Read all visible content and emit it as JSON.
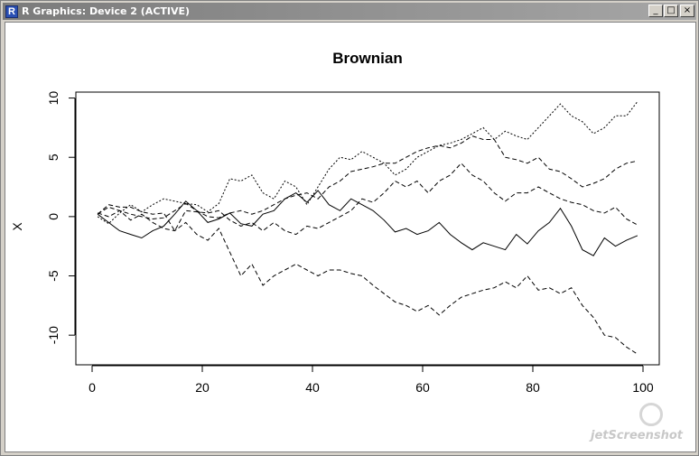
{
  "window": {
    "title": "R Graphics: Device 2 (ACTIVE)",
    "app_icon": "R",
    "minimize_label": "_",
    "maximize_label": "□",
    "close_label": "×"
  },
  "watermark": "jetScreenshot",
  "chart_data": {
    "type": "line",
    "title": "Brownian",
    "xlabel": "",
    "ylabel": "X",
    "xlim": [
      0,
      100
    ],
    "ylim": [
      -12.5,
      10.5
    ],
    "xticks": [
      0,
      20,
      40,
      60,
      80,
      100
    ],
    "yticks": [
      -10,
      -5,
      0,
      5,
      10
    ],
    "grid": false,
    "x": [
      1,
      3,
      5,
      7,
      9,
      11,
      13,
      15,
      17,
      19,
      21,
      23,
      25,
      27,
      29,
      31,
      33,
      35,
      37,
      39,
      41,
      43,
      45,
      47,
      49,
      51,
      53,
      55,
      57,
      59,
      61,
      63,
      65,
      67,
      69,
      71,
      73,
      75,
      77,
      79,
      81,
      83,
      85,
      87,
      89,
      91,
      93,
      95,
      97,
      99
    ],
    "series": [
      {
        "line_style": "solid",
        "values": [
          0.2,
          -0.5,
          -1.2,
          -1.5,
          -1.8,
          -1.2,
          -0.8,
          0.2,
          1.3,
          0.5,
          -0.5,
          -0.2,
          0.3,
          -0.6,
          -0.8,
          0.2,
          0.5,
          1.5,
          2.0,
          1.2,
          2.2,
          1.0,
          0.5,
          1.5,
          1.0,
          0.5,
          -0.3,
          -1.3,
          -1.0,
          -1.5,
          -1.2,
          -0.5,
          -1.5,
          -2.2,
          -2.8,
          -2.2,
          -2.5,
          -2.8,
          -1.5,
          -2.3,
          -1.2,
          -0.5,
          0.7,
          -0.8,
          -2.8,
          -3.3,
          -1.8,
          -2.5,
          -2.0,
          -1.6
        ]
      },
      {
        "line_style": "dotted",
        "values": [
          0.0,
          -0.6,
          0.3,
          1.0,
          0.4,
          1.0,
          1.5,
          1.3,
          1.1,
          1.0,
          0.4,
          1.1,
          3.2,
          3.0,
          3.5,
          2.0,
          1.5,
          3.0,
          2.5,
          1.0,
          2.5,
          4.0,
          5.0,
          4.8,
          5.5,
          5.0,
          4.5,
          3.5,
          4.0,
          5.0,
          5.5,
          6.0,
          6.2,
          6.5,
          7.0,
          7.5,
          6.5,
          7.2,
          6.8,
          6.5,
          7.5,
          8.5,
          9.5,
          8.5,
          8.0,
          7.0,
          7.5,
          8.5,
          8.5,
          9.7
        ]
      },
      {
        "line_style": "dashed",
        "values": [
          0.2,
          0.8,
          0.5,
          -0.3,
          0.2,
          -0.5,
          -1.0,
          -1.2,
          -0.5,
          -1.5,
          -2.0,
          -1.0,
          -3.0,
          -5.0,
          -4.0,
          -5.8,
          -5.0,
          -4.5,
          -4.0,
          -4.5,
          -5.0,
          -4.5,
          -4.5,
          -4.8,
          -5.0,
          -5.8,
          -6.5,
          -7.2,
          -7.5,
          -8.0,
          -7.5,
          -8.3,
          -7.5,
          -6.8,
          -6.5,
          -6.2,
          -6.0,
          -5.5,
          -6.0,
          -5.0,
          -6.2,
          -6.0,
          -6.5,
          -6.0,
          -7.5,
          -8.5,
          -10.0,
          -10.2,
          -11.0,
          -11.6
        ]
      },
      {
        "line_style": "dashed",
        "values": [
          0.2,
          1.0,
          0.8,
          0.8,
          0.4,
          0.2,
          0.3,
          -1.2,
          0.5,
          0.4,
          0.3,
          0.5,
          -0.3,
          -0.8,
          -0.5,
          -1.2,
          -0.5,
          -1.2,
          -1.5,
          -0.8,
          -1.0,
          -0.5,
          0.0,
          0.5,
          1.5,
          1.2,
          2.0,
          3.0,
          2.5,
          3.0,
          2.0,
          3.0,
          3.5,
          4.5,
          3.5,
          3.0,
          2.0,
          1.3,
          2.0,
          2.0,
          2.5,
          2.0,
          1.5,
          1.2,
          1.0,
          0.5,
          0.3,
          0.8,
          -0.2,
          -0.7
        ]
      },
      {
        "line_style": "dashed",
        "values": [
          0.3,
          0.0,
          0.5,
          0.2,
          0.0,
          -0.2,
          -0.1,
          0.5,
          1.1,
          0.5,
          0.0,
          -0.1,
          0.3,
          0.5,
          0.2,
          0.5,
          1.0,
          1.5,
          1.8,
          2.0,
          1.5,
          2.5,
          3.0,
          3.8,
          4.0,
          4.2,
          4.5,
          4.5,
          5.0,
          5.5,
          5.8,
          6.0,
          5.8,
          6.2,
          6.8,
          6.5,
          6.5,
          5.0,
          4.8,
          4.5,
          5.0,
          4.0,
          3.8,
          3.2,
          2.5,
          2.8,
          3.2,
          4.0,
          4.5,
          4.7
        ]
      }
    ]
  }
}
